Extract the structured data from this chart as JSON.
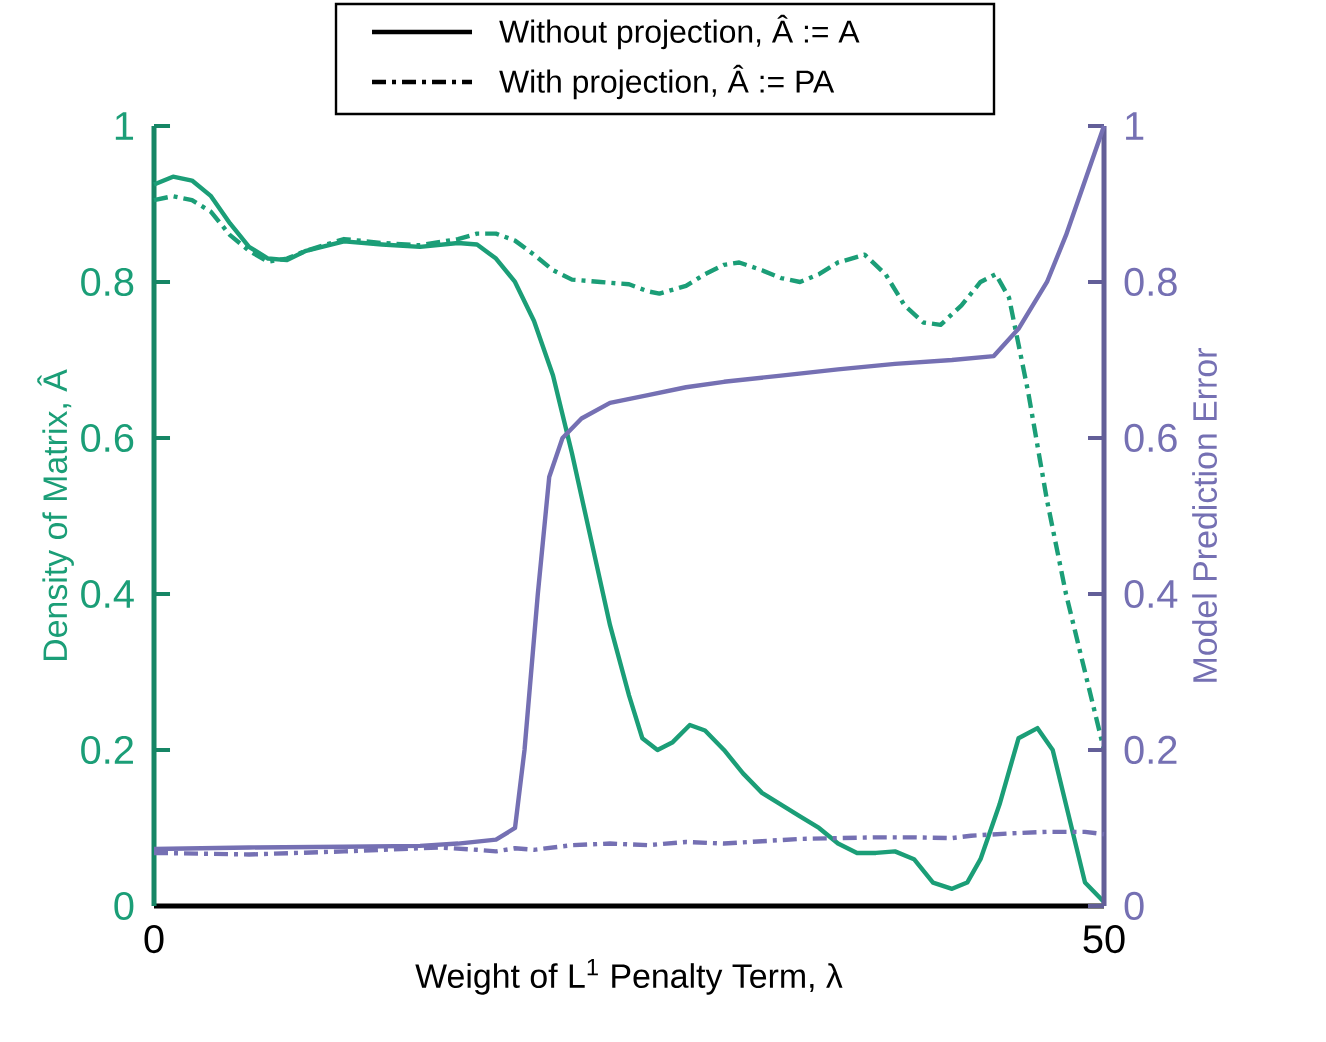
{
  "chart_data": {
    "type": "line",
    "xlabel": "Weight of L$^{1}$ Penalty Term, λ",
    "ylabel": "Density of Matrix, Â",
    "y2label": "Model Prediction Error",
    "xlim": [
      0,
      50
    ],
    "xticks": [
      0,
      50
    ],
    "ylim": [
      0,
      1
    ],
    "yticks": [
      0,
      0.2,
      0.4,
      0.6,
      0.8,
      1
    ],
    "y2lim": [
      0,
      1
    ],
    "y2ticks": [
      0,
      0.2,
      0.4,
      0.6,
      0.8,
      1
    ],
    "marker": "none",
    "annotations": [
      "Without projection, Â := A",
      "With projection, Â := PA"
    ],
    "series": [
      {
        "color": "#1b9e77",
        "line_style": "solid",
        "x": [
          0,
          1,
          2,
          3,
          4,
          5,
          6,
          7,
          8,
          10,
          12,
          14,
          16,
          17,
          18,
          19,
          20,
          21,
          22,
          23,
          24,
          25,
          25.7,
          26.5,
          27.3,
          28.2,
          29,
          30,
          31,
          32,
          33,
          34,
          35,
          36,
          37,
          38,
          39,
          40,
          41,
          42,
          42.8,
          43.5,
          44.5,
          45.5,
          46.5,
          47.3,
          48.2,
          49,
          50
        ],
        "values": [
          0.925,
          0.935,
          0.93,
          0.91,
          0.875,
          0.845,
          0.83,
          0.828,
          0.84,
          0.852,
          0.848,
          0.845,
          0.85,
          0.848,
          0.83,
          0.8,
          0.75,
          0.68,
          0.58,
          0.47,
          0.36,
          0.27,
          0.215,
          0.2,
          0.21,
          0.232,
          0.225,
          0.2,
          0.17,
          0.145,
          0.13,
          0.115,
          0.1,
          0.08,
          0.068,
          0.068,
          0.07,
          0.06,
          0.03,
          0.022,
          0.03,
          0.06,
          0.13,
          0.215,
          0.228,
          0.2,
          0.11,
          0.03,
          0.005
        ]
      },
      {
        "color": "#1b9e77",
        "line_style": "dashdot",
        "x": [
          0,
          1,
          2,
          3,
          4,
          5,
          6,
          7,
          8,
          10,
          12,
          14,
          16,
          17,
          18,
          19,
          20,
          21,
          22,
          23.5,
          25,
          26,
          26.6,
          28,
          29,
          30,
          30.8,
          32,
          33,
          34,
          35,
          36,
          37.4,
          38.5,
          39.5,
          40.5,
          41.4,
          42.5,
          43.5,
          44.3,
          45,
          46,
          47,
          48,
          49,
          50
        ],
        "values": [
          0.905,
          0.91,
          0.905,
          0.89,
          0.86,
          0.84,
          0.826,
          0.83,
          0.84,
          0.855,
          0.85,
          0.847,
          0.855,
          0.862,
          0.862,
          0.853,
          0.835,
          0.815,
          0.803,
          0.8,
          0.797,
          0.788,
          0.785,
          0.795,
          0.81,
          0.822,
          0.825,
          0.815,
          0.805,
          0.8,
          0.81,
          0.825,
          0.835,
          0.81,
          0.77,
          0.748,
          0.745,
          0.77,
          0.8,
          0.81,
          0.78,
          0.66,
          0.52,
          0.4,
          0.3,
          0.2
        ]
      },
      {
        "color": "#7570b3",
        "line_style": "solid",
        "axis": "y2",
        "x": [
          0,
          5,
          10,
          14,
          16,
          18,
          19,
          19.5,
          20.2,
          20.8,
          21.5,
          22.5,
          24,
          26,
          28,
          30,
          33,
          36,
          39,
          42,
          44.2,
          45.5,
          47,
          48,
          49,
          50
        ],
        "values": [
          0.073,
          0.075,
          0.076,
          0.077,
          0.08,
          0.085,
          0.1,
          0.2,
          0.4,
          0.55,
          0.6,
          0.625,
          0.645,
          0.655,
          0.665,
          0.672,
          0.68,
          0.688,
          0.695,
          0.7,
          0.705,
          0.74,
          0.8,
          0.86,
          0.93,
          1.0
        ]
      },
      {
        "color": "#7570b3",
        "line_style": "dashdot",
        "axis": "y2",
        "x": [
          0,
          5,
          10,
          15,
          17,
          18,
          19,
          20,
          22,
          24,
          26,
          28,
          30,
          32,
          34,
          36,
          38,
          40,
          42,
          43,
          45,
          47,
          49,
          50
        ],
        "values": [
          0.068,
          0.066,
          0.07,
          0.075,
          0.072,
          0.07,
          0.074,
          0.072,
          0.078,
          0.08,
          0.078,
          0.082,
          0.08,
          0.083,
          0.086,
          0.087,
          0.088,
          0.088,
          0.087,
          0.09,
          0.093,
          0.095,
          0.095,
          0.092
        ]
      }
    ]
  }
}
